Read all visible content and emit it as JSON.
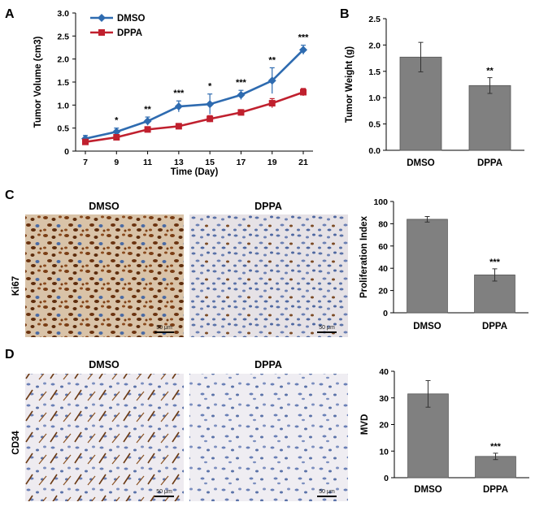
{
  "panels": {
    "A": "A",
    "B": "B",
    "C": "C",
    "D": "D"
  },
  "chart_data": [
    {
      "id": "A",
      "type": "line",
      "xlabel": "Time (Day)",
      "ylabel": "Tumor Volume (cm3)",
      "ylim": [
        0,
        3
      ],
      "yticks": [
        "0",
        "0.5",
        "1.0",
        "1.5",
        "2.0",
        "2.5",
        "3.0"
      ],
      "x": [
        7,
        9,
        11,
        13,
        15,
        17,
        19,
        21
      ],
      "legend_position": "top-left",
      "series": [
        {
          "name": "DMSO",
          "color": "#2e6bb0",
          "marker": "diamond",
          "values": [
            0.27,
            0.42,
            0.65,
            0.97,
            1.02,
            1.22,
            1.53,
            2.2
          ],
          "errors": [
            0.07,
            0.08,
            0.09,
            0.12,
            0.22,
            0.1,
            0.28,
            0.1
          ]
        },
        {
          "name": "DPPA",
          "color": "#c0202e",
          "marker": "square",
          "values": [
            0.2,
            0.3,
            0.47,
            0.54,
            0.7,
            0.84,
            1.04,
            1.28
          ],
          "errors": [
            0.05,
            0.05,
            0.06,
            0.06,
            0.07,
            0.06,
            0.1,
            0.08
          ]
        }
      ],
      "annotations": [
        {
          "x": 9,
          "text": "*"
        },
        {
          "x": 11,
          "text": "**"
        },
        {
          "x": 13,
          "text": "***"
        },
        {
          "x": 15,
          "text": "*"
        },
        {
          "x": 17,
          "text": "***"
        },
        {
          "x": 19,
          "text": "**"
        },
        {
          "x": 21,
          "text": "***"
        }
      ]
    },
    {
      "id": "B",
      "type": "bar",
      "ylabel": "Tumor Weight (g)",
      "ylim": [
        0,
        2.5
      ],
      "yticks": [
        "0.0",
        "0.5",
        "1.0",
        "1.5",
        "2.0",
        "2.5"
      ],
      "categories": [
        "DMSO",
        "DPPA"
      ],
      "values": [
        1.77,
        1.23
      ],
      "errors": [
        0.28,
        0.15
      ],
      "annotations": [
        "",
        "**"
      ],
      "bar_color": "#808080"
    },
    {
      "id": "C",
      "type": "bar",
      "ylabel": "Proliferation Index",
      "ylim": [
        0,
        100
      ],
      "yticks": [
        "0",
        "20",
        "40",
        "60",
        "80",
        "100"
      ],
      "categories": [
        "DMSO",
        "DPPA"
      ],
      "values": [
        84,
        34
      ],
      "errors": [
        2.5,
        5.5
      ],
      "annotations": [
        "",
        "***"
      ],
      "bar_color": "#808080"
    },
    {
      "id": "D",
      "type": "bar",
      "ylabel": "MVD",
      "ylim": [
        0,
        40
      ],
      "yticks": [
        "0",
        "10",
        "20",
        "30",
        "40"
      ],
      "categories": [
        "DMSO",
        "DPPA"
      ],
      "values": [
        31.5,
        8
      ],
      "errors": [
        5,
        1.2
      ],
      "annotations": [
        "",
        "***"
      ],
      "bar_color": "#808080"
    }
  ],
  "micrographs": {
    "C": {
      "row_label": "Ki67",
      "titles": [
        "DMSO",
        "DPPA"
      ],
      "scale": [
        "50 μm",
        "50 μm"
      ]
    },
    "D": {
      "row_label": "CD34",
      "titles": [
        "DMSO",
        "DPPA"
      ],
      "scale": [
        "50 μm",
        "50 μm"
      ]
    }
  }
}
